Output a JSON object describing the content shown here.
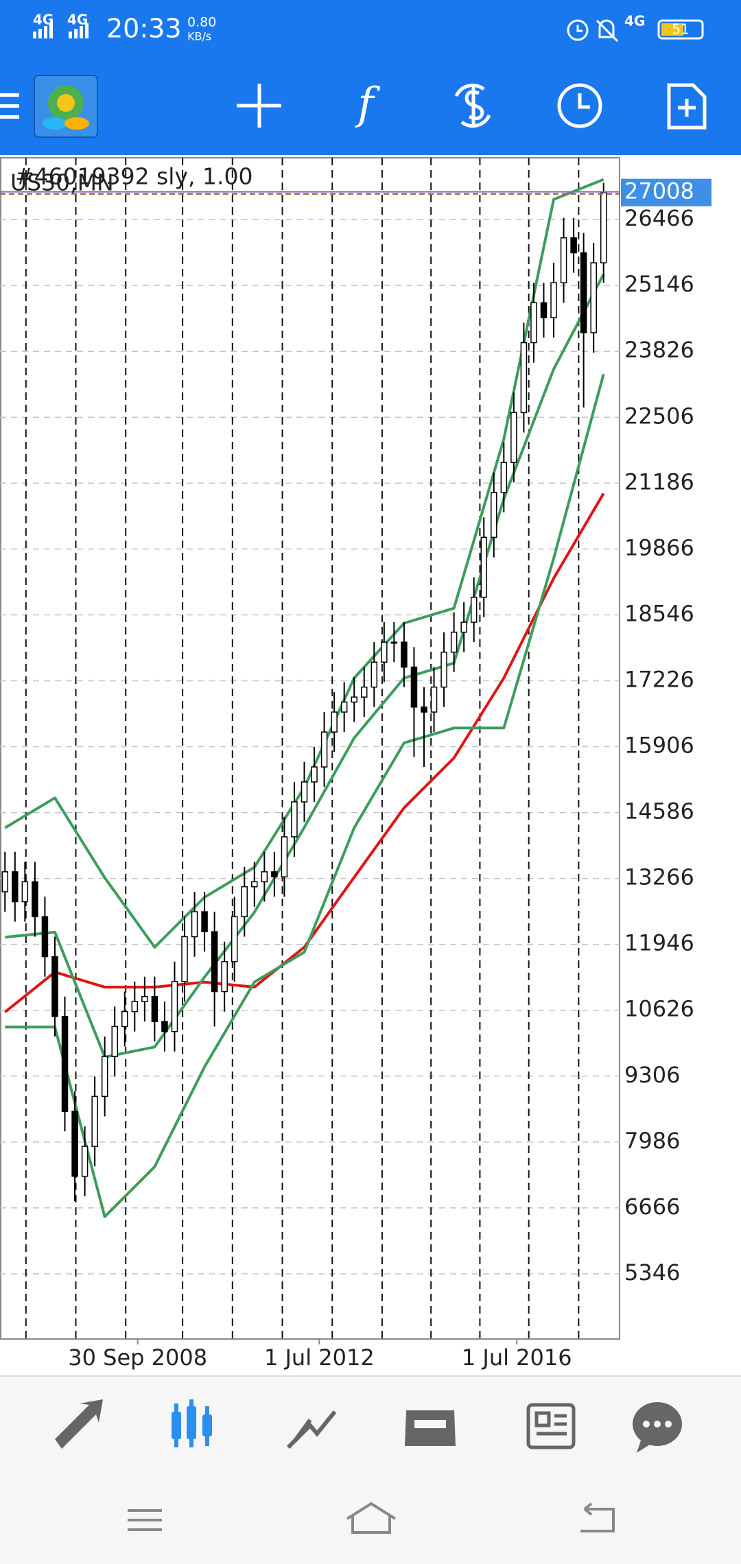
{
  "status_bar": {
    "network_1": "4G",
    "network_2": "4G",
    "time": "20:33",
    "speed": "0.80",
    "speed_unit": "KB/s",
    "network_3": "4G",
    "battery": "51"
  },
  "chart_data": {
    "type": "candlestick",
    "symbol": "US30,MN",
    "order_label": "#46019392 sly, 1.00",
    "open": [
      13000,
      13400,
      12800,
      13200,
      12500,
      11700,
      10500,
      8600,
      7300,
      7900,
      8900,
      9700,
      10300,
      10600,
      10800,
      10900,
      10400,
      10200,
      11200,
      12100,
      12600,
      12200,
      11000,
      11600,
      12500,
      13100,
      13200,
      13400,
      13300,
      14100,
      14800,
      15200,
      15500,
      16200,
      16600,
      16800,
      16900,
      17100,
      17600,
      18000,
      18000,
      17500,
      16700,
      16600,
      17100,
      17800,
      18200,
      18400,
      18900,
      20100,
      21000,
      21600,
      22600,
      24000,
      24800,
      24500,
      25200,
      26100,
      25800,
      24200,
      25600
    ],
    "high": [
      13800,
      13800,
      13600,
      13600,
      12900,
      12100,
      10900,
      9000,
      8300,
      9300,
      10100,
      10700,
      11000,
      11200,
      11300,
      11300,
      10800,
      11600,
      12500,
      13000,
      13000,
      12600,
      12000,
      12900,
      13500,
      13600,
      13800,
      13800,
      14500,
      15200,
      15600,
      15900,
      16600,
      17000,
      17200,
      17300,
      17500,
      18000,
      18400,
      18400,
      18400,
      17900,
      17100,
      17500,
      18200,
      18600,
      18800,
      19300,
      20500,
      21400,
      22000,
      23000,
      24400,
      25200,
      25200,
      25600,
      26500,
      26500,
      26200,
      26000,
      27200
    ],
    "low": [
      12600,
      12400,
      12400,
      12100,
      11300,
      10100,
      8200,
      6800,
      6900,
      7500,
      8500,
      9300,
      9900,
      10200,
      10400,
      10000,
      9800,
      9800,
      10800,
      11700,
      11800,
      10300,
      10600,
      11200,
      12100,
      12700,
      12800,
      12900,
      12900,
      13700,
      14400,
      14800,
      15100,
      15800,
      16200,
      16400,
      16500,
      16700,
      17200,
      17600,
      17100,
      15700,
      15500,
      16200,
      16700,
      17400,
      17800,
      18000,
      18500,
      19700,
      20600,
      21200,
      22200,
      23600,
      24100,
      24100,
      24800,
      25400,
      22700,
      23800,
      25200
    ],
    "close": [
      13400,
      12800,
      13200,
      12500,
      11700,
      10500,
      8600,
      7300,
      7900,
      8900,
      9700,
      10300,
      10600,
      10800,
      10900,
      10400,
      10200,
      11200,
      12100,
      12600,
      12200,
      11000,
      11600,
      12500,
      13100,
      13200,
      13400,
      13300,
      14100,
      14800,
      15200,
      15500,
      16200,
      16600,
      16800,
      16900,
      17100,
      17600,
      18000,
      18000,
      17500,
      16700,
      16600,
      17100,
      17800,
      18200,
      18400,
      18900,
      20100,
      21000,
      21600,
      22600,
      24000,
      24800,
      24500,
      25200,
      26100,
      25800,
      24200,
      25600,
      27008
    ],
    "candle_color": "#000000",
    "lines": [
      {
        "color": "#e01515",
        "x": [
          0,
          5,
          10,
          15,
          20,
          25,
          30,
          35,
          40,
          45,
          50,
          55,
          60
        ],
        "values": [
          10590,
          11390,
          11090,
          11090,
          11190,
          11090,
          11890,
          13290,
          14680,
          15680,
          17280,
          19280,
          20980
        ]
      },
      {
        "color": "#3c9d5d",
        "x": [
          0,
          5,
          10,
          15,
          20,
          25,
          30,
          35,
          40,
          45,
          50,
          55,
          60
        ],
        "values": [
          14280,
          14880,
          13280,
          11890,
          12890,
          13490,
          15090,
          17280,
          18380,
          18680,
          22070,
          26870,
          27270
        ]
      },
      {
        "color": "#3c9d5d",
        "x": [
          0,
          5,
          10,
          15,
          20,
          25,
          30,
          35,
          40,
          45,
          50,
          55,
          60
        ],
        "values": [
          12090,
          12190,
          9690,
          9890,
          11290,
          12590,
          14290,
          16080,
          17280,
          17580,
          20870,
          23470,
          25370
        ]
      },
      {
        "color": "#3c9d5d",
        "x": [
          0,
          5,
          10,
          15,
          20,
          25,
          30,
          35,
          40,
          45,
          50,
          55,
          60
        ],
        "values": [
          10290,
          10290,
          6490,
          7490,
          9490,
          11190,
          11790,
          14280,
          15980,
          16280,
          16280,
          19680,
          23370
        ]
      }
    ],
    "xlim": [
      -0.5,
      61.6
    ],
    "xticks": [
      {
        "value": 13.3,
        "label": "30 Sep 2008"
      },
      {
        "value": 31.5,
        "label": "1 Jul 2012"
      },
      {
        "value": 51.3,
        "label": "1 Jul 2016"
      }
    ],
    "separators": [
      2.1,
      7.1,
      12.1,
      17.8,
      22.8,
      27.8,
      32.8,
      37.8,
      42.7,
      47.6,
      52.5,
      57.5
    ],
    "ylim": [
      4040,
      27704
    ],
    "yticks": [
      5346,
      6666,
      7986,
      9306,
      10626,
      11946,
      13266,
      14586,
      15906,
      17226,
      18546,
      19866,
      21186,
      22506,
      23826,
      25146,
      26466
    ],
    "current_price": 27008,
    "grid": true
  }
}
